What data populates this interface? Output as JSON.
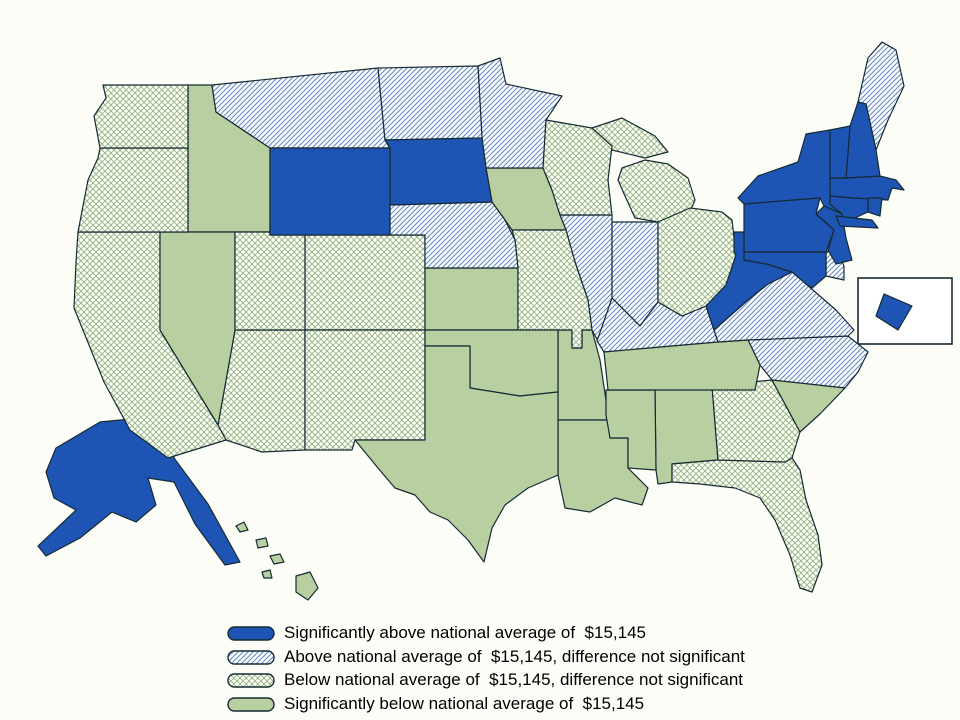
{
  "colors": {
    "sig_above_fill": "#1e55b5",
    "above_hatch_line": "#5e86c2",
    "below_hatch_line": "#9cba84",
    "sig_below_fill": "#b8cfa2",
    "outline": "#152b33",
    "background": "#fdfdf8",
    "legend_text": "#000000",
    "inset_box_fill": "#ffffff"
  },
  "map": {
    "national_average": "$15,145",
    "states": [
      {
        "id": "AL",
        "name": "Alabama",
        "category": "sig_below"
      },
      {
        "id": "AK",
        "name": "Alaska",
        "category": "sig_above"
      },
      {
        "id": "AZ",
        "name": "Arizona",
        "category": "below_ns"
      },
      {
        "id": "AR",
        "name": "Arkansas",
        "category": "sig_below"
      },
      {
        "id": "CA",
        "name": "California",
        "category": "below_ns"
      },
      {
        "id": "CO",
        "name": "Colorado",
        "category": "below_ns"
      },
      {
        "id": "CT",
        "name": "Connecticut",
        "category": "sig_above"
      },
      {
        "id": "DE",
        "name": "Delaware",
        "category": "above_ns"
      },
      {
        "id": "DC",
        "name": "District of Columbia",
        "category": "sig_above"
      },
      {
        "id": "FL",
        "name": "Florida",
        "category": "below_ns"
      },
      {
        "id": "GA",
        "name": "Georgia",
        "category": "below_ns"
      },
      {
        "id": "HI",
        "name": "Hawaii",
        "category": "sig_below"
      },
      {
        "id": "ID",
        "name": "Idaho",
        "category": "sig_below"
      },
      {
        "id": "IL",
        "name": "Illinois",
        "category": "above_ns"
      },
      {
        "id": "IN",
        "name": "Indiana",
        "category": "above_ns"
      },
      {
        "id": "IA",
        "name": "Iowa",
        "category": "sig_below"
      },
      {
        "id": "KS",
        "name": "Kansas",
        "category": "sig_below"
      },
      {
        "id": "KY",
        "name": "Kentucky",
        "category": "above_ns"
      },
      {
        "id": "LA",
        "name": "Louisiana",
        "category": "sig_below"
      },
      {
        "id": "ME",
        "name": "Maine",
        "category": "above_ns"
      },
      {
        "id": "MD",
        "name": "Maryland",
        "category": "sig_above"
      },
      {
        "id": "MA",
        "name": "Massachusetts",
        "category": "sig_above"
      },
      {
        "id": "MI",
        "name": "Michigan",
        "category": "below_ns"
      },
      {
        "id": "MN",
        "name": "Minnesota",
        "category": "above_ns"
      },
      {
        "id": "MS",
        "name": "Mississippi",
        "category": "sig_below"
      },
      {
        "id": "MO",
        "name": "Missouri",
        "category": "below_ns"
      },
      {
        "id": "MT",
        "name": "Montana",
        "category": "above_ns"
      },
      {
        "id": "NE",
        "name": "Nebraska",
        "category": "above_ns"
      },
      {
        "id": "NV",
        "name": "Nevada",
        "category": "sig_below"
      },
      {
        "id": "NH",
        "name": "New Hampshire",
        "category": "sig_above"
      },
      {
        "id": "NJ",
        "name": "New Jersey",
        "category": "sig_above"
      },
      {
        "id": "NM",
        "name": "New Mexico",
        "category": "below_ns"
      },
      {
        "id": "NY",
        "name": "New York",
        "category": "sig_above"
      },
      {
        "id": "NC",
        "name": "North Carolina",
        "category": "above_ns"
      },
      {
        "id": "ND",
        "name": "North Dakota",
        "category": "above_ns"
      },
      {
        "id": "OH",
        "name": "Ohio",
        "category": "below_ns"
      },
      {
        "id": "OK",
        "name": "Oklahoma",
        "category": "sig_below"
      },
      {
        "id": "OR",
        "name": "Oregon",
        "category": "below_ns"
      },
      {
        "id": "PA",
        "name": "Pennsylvania",
        "category": "sig_above"
      },
      {
        "id": "RI",
        "name": "Rhode Island",
        "category": "sig_above"
      },
      {
        "id": "SC",
        "name": "South Carolina",
        "category": "sig_below"
      },
      {
        "id": "SD",
        "name": "South Dakota",
        "category": "sig_above"
      },
      {
        "id": "TN",
        "name": "Tennessee",
        "category": "sig_below"
      },
      {
        "id": "TX",
        "name": "Texas",
        "category": "sig_below"
      },
      {
        "id": "UT",
        "name": "Utah",
        "category": "below_ns"
      },
      {
        "id": "VT",
        "name": "Vermont",
        "category": "sig_above"
      },
      {
        "id": "VA",
        "name": "Virginia",
        "category": "above_ns"
      },
      {
        "id": "WA",
        "name": "Washington",
        "category": "below_ns"
      },
      {
        "id": "WV",
        "name": "West Virginia",
        "category": "sig_above"
      },
      {
        "id": "WI",
        "name": "Wisconsin",
        "category": "below_ns"
      },
      {
        "id": "WY",
        "name": "Wyoming",
        "category": "sig_above"
      }
    ]
  },
  "legend": {
    "items": [
      {
        "category": "sig_above",
        "swatch": "solid-blue",
        "label": "Significantly above national average of  $15,145"
      },
      {
        "category": "above_ns",
        "swatch": "blue-diagonal-hatch",
        "label": "Above national average of  $15,145, difference not significant"
      },
      {
        "category": "below_ns",
        "swatch": "green-crosshatch",
        "label": "Below national average of  $15,145, difference not significant"
      },
      {
        "category": "sig_below",
        "swatch": "solid-green",
        "label": "Significantly below national average of  $15,145"
      }
    ]
  }
}
